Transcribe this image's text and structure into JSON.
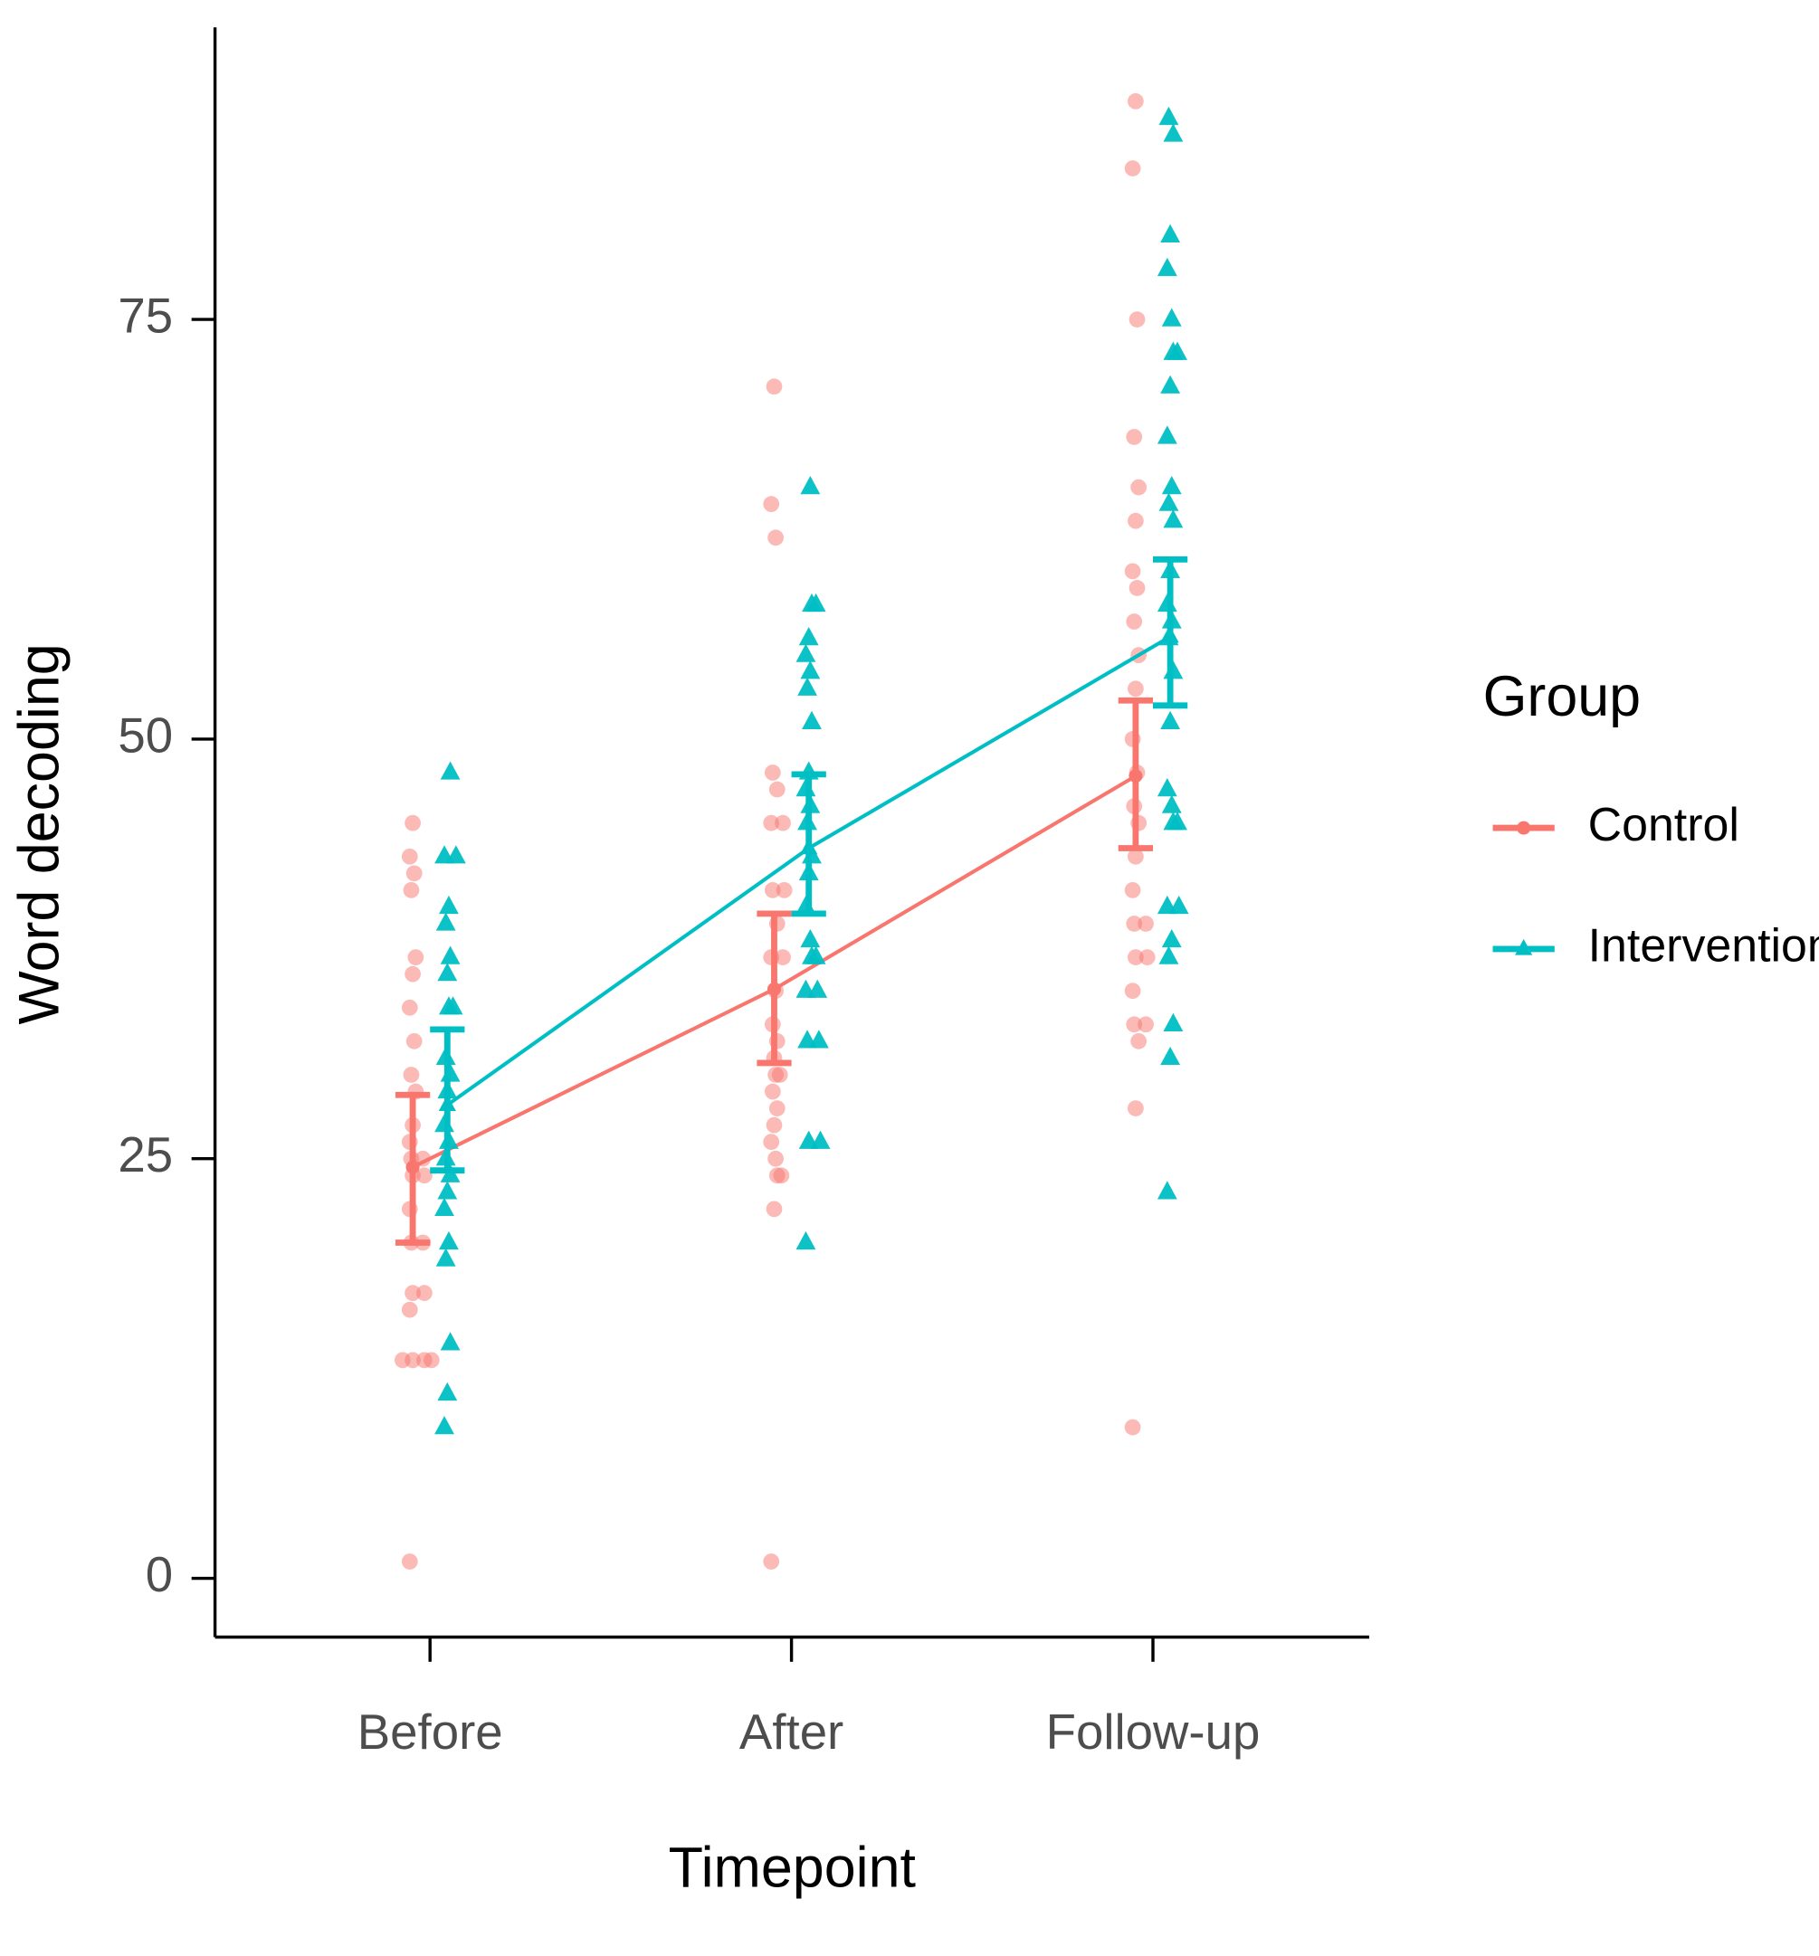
{
  "chart_data": {
    "type": "point-errorbar",
    "x_label": "Timepoint",
    "y_label": "Word decoding",
    "categories": [
      "Before",
      "After",
      "Follow-up"
    ],
    "ylim": [
      -3.5,
      92.4
    ],
    "yticks": [
      0,
      25,
      50,
      75
    ],
    "legend_title": "Group",
    "legend_position": "right",
    "series": [
      {
        "name": "Control",
        "color": "#F8766D",
        "marker": "circle",
        "values": [
          24.5,
          35.1,
          47.8
        ],
        "error_low": [
          20.0,
          30.7,
          43.5
        ],
        "error_high": [
          28.8,
          39.6,
          52.3
        ],
        "points": [
          [
            1,
            13,
            13,
            13,
            13,
            16,
            17,
            17,
            20,
            20,
            22,
            24,
            24,
            25,
            25,
            26,
            27,
            29,
            30,
            32,
            34,
            36,
            37,
            41,
            42,
            43,
            45
          ],
          [
            1,
            22,
            24,
            24,
            25,
            26,
            27,
            28,
            29,
            30,
            30,
            31,
            32,
            33,
            35,
            37,
            37,
            39,
            41,
            41,
            45,
            45,
            47,
            48,
            62,
            64,
            71
          ],
          [
            9,
            28,
            32,
            33,
            33,
            35,
            37,
            37,
            39,
            39,
            41,
            43,
            45,
            46,
            48,
            50,
            53,
            55,
            57,
            59,
            60,
            63,
            65,
            68,
            75,
            84,
            88
          ]
        ]
      },
      {
        "name": "Intervention",
        "color": "#00BFC4",
        "marker": "triangle",
        "values": [
          28.2,
          43.5,
          56.1
        ],
        "error_low": [
          24.3,
          39.6,
          52.0
        ],
        "error_high": [
          32.7,
          47.9,
          60.7
        ],
        "points": [
          [
            9,
            11,
            14,
            19,
            20,
            22,
            23,
            24,
            25,
            26,
            27,
            29,
            30,
            31,
            34,
            34,
            36,
            37,
            39,
            40,
            43,
            43,
            48
          ],
          [
            20,
            26,
            26,
            32,
            32,
            35,
            35,
            37,
            37,
            38,
            40,
            42,
            43,
            45,
            46,
            47,
            48,
            51,
            53,
            54,
            55,
            56,
            58,
            58,
            65
          ],
          [
            23,
            31,
            33,
            37,
            38,
            40,
            40,
            45,
            45,
            46,
            47,
            51,
            54,
            56,
            57,
            58,
            60,
            63,
            64,
            65,
            68,
            71,
            73,
            73,
            75,
            78,
            80,
            86,
            87
          ]
        ]
      }
    ]
  }
}
